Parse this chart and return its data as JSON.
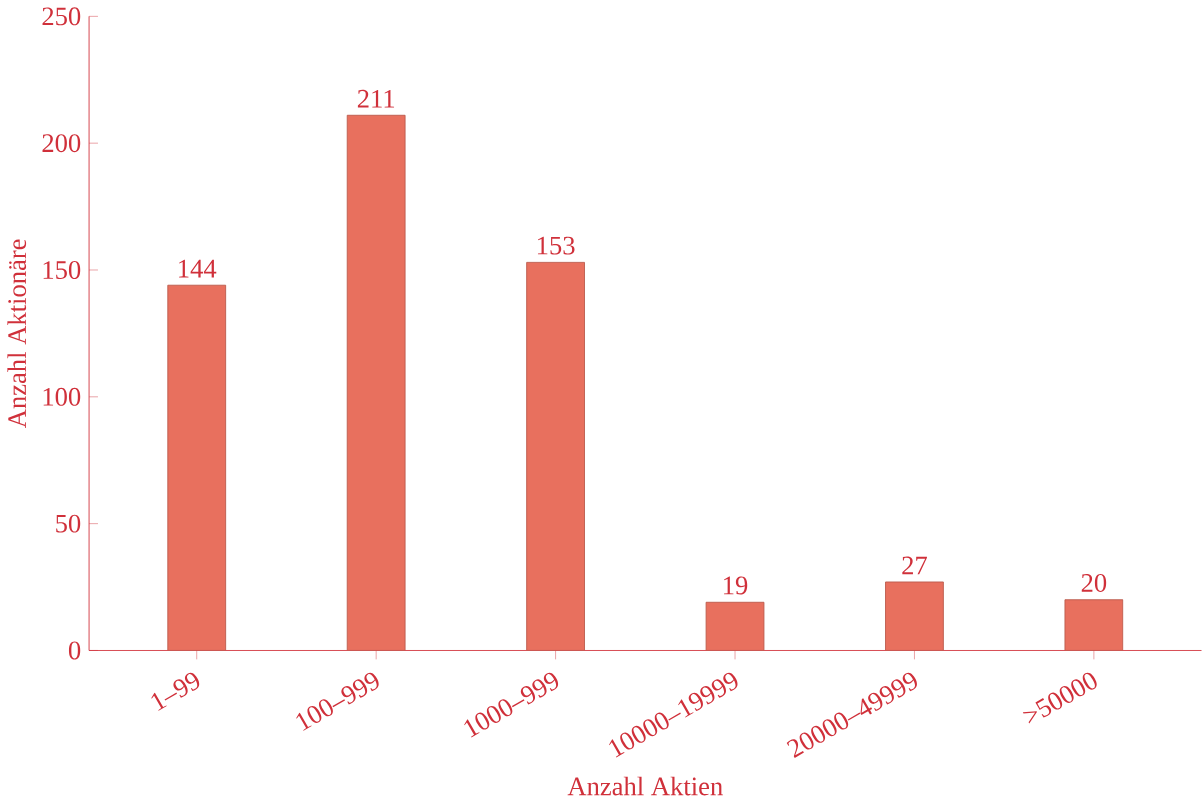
{
  "chart_data": {
    "type": "bar",
    "xlabel": "Anzahl Aktien",
    "ylabel": "Anzahl Aktionäre",
    "categories": [
      "1–99",
      "100–999",
      "1000–999",
      "10000–19999",
      "20000–49999",
      ">50000"
    ],
    "values": [
      144,
      211,
      153,
      19,
      27,
      20
    ],
    "color": "#e8705e",
    "ylim": [
      0,
      250
    ],
    "yticks": [
      0,
      50,
      100,
      150,
      200,
      250
    ],
    "data_labels": true
  }
}
